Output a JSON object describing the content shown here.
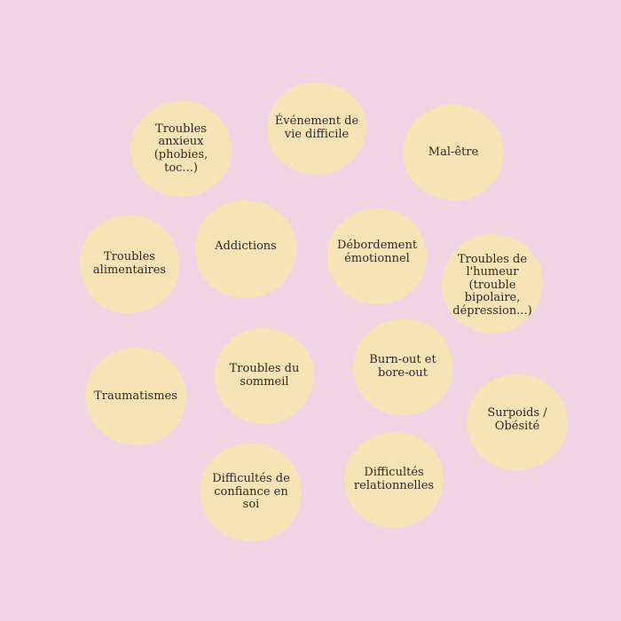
{
  "bubbles": [
    {
      "id": "anxieux",
      "label": "Troubles\nanxieux\n(phobies, toc...)"
    },
    {
      "id": "evenement",
      "label": "Événement de\nvie difficile"
    },
    {
      "id": "malettre",
      "label": "Mal-être"
    },
    {
      "id": "alimentaires",
      "label": "Troubles\nalimentaires"
    },
    {
      "id": "addictions",
      "label": "Addictions"
    },
    {
      "id": "debordement",
      "label": "Débordement\némotionnel"
    },
    {
      "id": "humeur",
      "label": "Troubles de\nl'humeur\n(trouble\nbipolaire,\ndépression...)"
    },
    {
      "id": "traumatismes",
      "label": "Traumatismes"
    },
    {
      "id": "sommeil",
      "label": "Troubles du\nsommeil"
    },
    {
      "id": "burnout",
      "label": "Burn-out et\nbore-out"
    },
    {
      "id": "surpoids",
      "label": "Surpoids /\nObésité"
    },
    {
      "id": "confiance",
      "label": "Difficultés de\nconfiance en\nsoi"
    },
    {
      "id": "relationnelles",
      "label": "Difficultés\nrelationnelles"
    }
  ],
  "colors": {
    "background": "#f2d3e4",
    "bubble": "#f8e3b6",
    "text": "#2e2a26"
  }
}
